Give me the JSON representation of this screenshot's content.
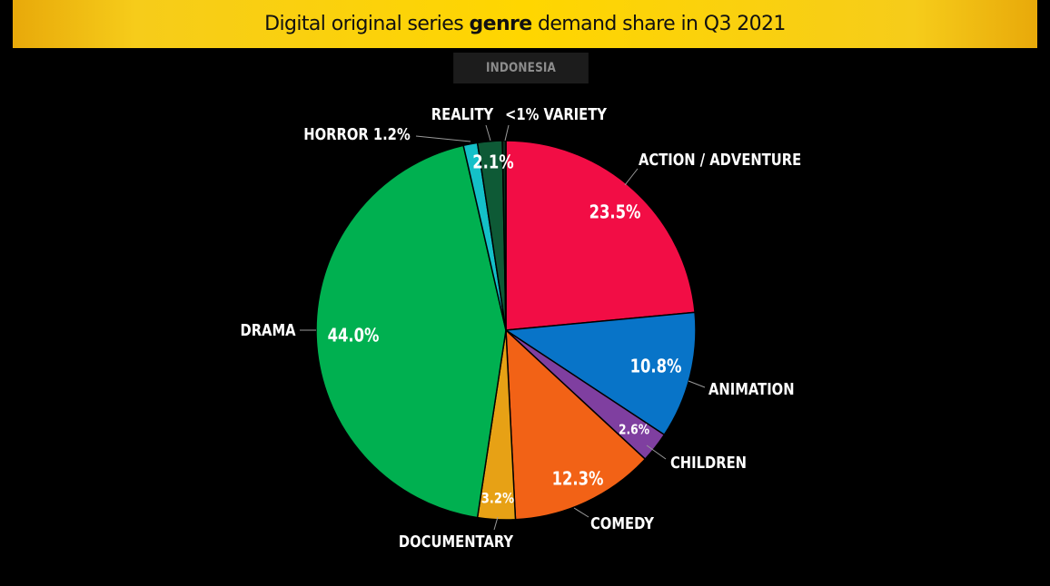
{
  "header": {
    "title_prefix": "Digital original series ",
    "title_bold": "genre",
    "title_suffix": " demand share in Q3 2021",
    "region": "INDONESIA"
  },
  "chart_data": {
    "type": "pie",
    "title": "Digital original series genre demand share in Q3 2021",
    "subtitle": "INDONESIA",
    "start": "top",
    "direction": "clockwise",
    "slices": [
      {
        "label": "ACTION / ADVENTURE",
        "value": 23.5,
        "value_label": "23.5%",
        "color": "#f20d45"
      },
      {
        "label": "ANIMATION",
        "value": 10.8,
        "value_label": "10.8%",
        "color": "#0874c8"
      },
      {
        "label": "CHILDREN",
        "value": 2.6,
        "value_label": "2.6%",
        "color": "#7f3fa0"
      },
      {
        "label": "COMEDY",
        "value": 12.3,
        "value_label": "12.3%",
        "color": "#f26216"
      },
      {
        "label": "DOCUMENTARY",
        "value": 3.2,
        "value_label": "3.2%",
        "color": "#e7a115"
      },
      {
        "label": "DRAMA",
        "value": 44.0,
        "value_label": "44.0%",
        "color": "#00b050"
      },
      {
        "label": "HORROR",
        "value": 1.2,
        "value_label": "",
        "color": "#14c0c8"
      },
      {
        "label": "REALITY",
        "value": 2.1,
        "value_label": "2.1%",
        "color": "#0e5a36"
      },
      {
        "label": "VARIETY",
        "value": 0.3,
        "value_label": "",
        "color": "#0b2e1e"
      }
    ],
    "callouts": {
      "ACTION / ADVENTURE": "ACTION / ADVENTURE",
      "ANIMATION": "ANIMATION",
      "CHILDREN": "CHILDREN",
      "COMEDY": "COMEDY",
      "DOCUMENTARY": "DOCUMENTARY",
      "DRAMA": "DRAMA",
      "HORROR": "HORROR 1.2%",
      "REALITY": "REALITY",
      "VARIETY": "<1% VARIETY"
    }
  }
}
